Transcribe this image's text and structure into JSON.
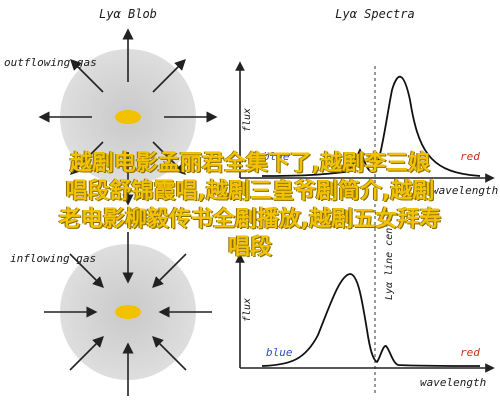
{
  "left_panel": {
    "title": "Lyα Blob",
    "top_label": "outflowing gas",
    "bottom_label": "inflowing gas"
  },
  "right_panel": {
    "title": "Lyα Spectra",
    "y_axis_label": "flux",
    "x_axis_label": "wavelength",
    "blue_label": "blue",
    "red_label": "red",
    "line_center_label": "Lyα line center",
    "blue_color": "#2a4ec8",
    "red_color": "#c8321e"
  },
  "overlay": {
    "lines": [
      "越剧电影孟丽君全集下了,越剧李三娘",
      "唱段舒锦霞唱,越剧三皇爷剧简介,越剧",
      "老电影柳毅传书全剧播放,越剧五女拜寿",
      "唱段"
    ],
    "color": "#f2c200"
  },
  "icons": {
    "blob": "gray-circle-icon",
    "source": "yellow-ellipse-icon",
    "arrows": "arrow-icon"
  }
}
